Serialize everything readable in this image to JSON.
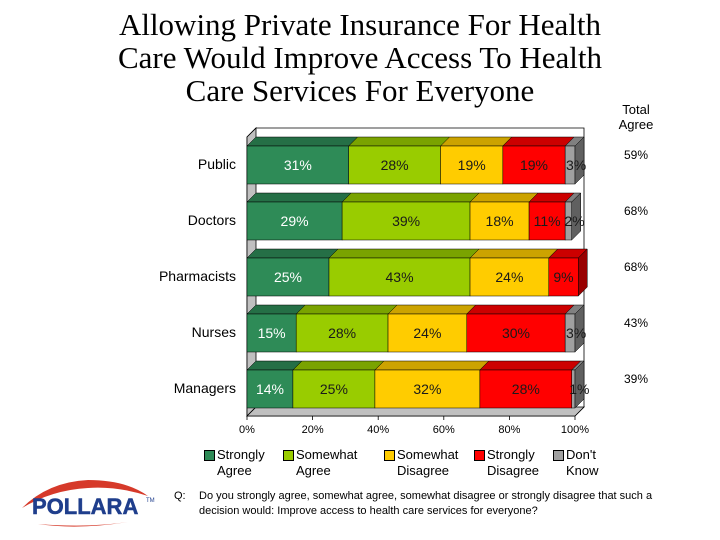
{
  "title_lines": [
    "Allowing Private Insurance For Health",
    "Care Would Improve Access To Health",
    "Care Services For Everyone"
  ],
  "total_agree_label": "Total Agree",
  "chart_data": {
    "type": "bar",
    "orientation": "horizontal",
    "stacked": true,
    "categories": [
      "Public",
      "Doctors",
      "Pharmacists",
      "Nurses",
      "Managers"
    ],
    "series": [
      {
        "name": "Strongly Agree",
        "color": "#2e8b57",
        "values": [
          31,
          29,
          25,
          15,
          14
        ]
      },
      {
        "name": "Somewhat Agree",
        "color": "#99cc00",
        "values": [
          28,
          39,
          43,
          28,
          25
        ]
      },
      {
        "name": "Somewhat Disagree",
        "color": "#ffcc00",
        "values": [
          19,
          18,
          24,
          24,
          32
        ]
      },
      {
        "name": "Strongly Disagree",
        "color": "#ff0000",
        "values": [
          19,
          11,
          9,
          30,
          28
        ]
      },
      {
        "name": "Don't Know",
        "color": "#a0a0a0",
        "values": [
          3,
          2,
          0,
          3,
          1
        ]
      }
    ],
    "bar_labels": [
      [
        "31%",
        "28%",
        "19%",
        "19%",
        "3%"
      ],
      [
        "29%",
        "39%",
        "18%",
        "11%",
        "2%"
      ],
      [
        "25%",
        "43%",
        "24%",
        "9%",
        ""
      ],
      [
        "15%",
        "28%",
        "24%",
        "30%",
        "3%"
      ],
      [
        "14%",
        "25%",
        "32%",
        "28%",
        "1%"
      ]
    ],
    "total_agree": [
      "59%",
      "68%",
      "68%",
      "43%",
      "39%"
    ],
    "xlim": [
      0,
      100
    ],
    "xticks": [
      "0%",
      "20%",
      "40%",
      "60%",
      "80%",
      "100%"
    ],
    "grid": false,
    "legend_position": "bottom"
  },
  "legend": [
    {
      "text": "Strongly\nAgree",
      "color": "#2e8b57"
    },
    {
      "text": "Somewhat\nAgree",
      "color": "#99cc00"
    },
    {
      "text": "Somewhat\nDisagree",
      "color": "#ffcc00"
    },
    {
      "text": "Strongly\nDisagree",
      "color": "#ff0000"
    },
    {
      "text": "Don't\nKnow",
      "color": "#a0a0a0"
    }
  ],
  "logo_text": "POLLARA",
  "logo_tm": "TM",
  "question_prefix": "Q:",
  "question_text": "Do you strongly agree, somewhat agree, somewhat disagree or strongly disagree that such a decision would: Improve access to health care services for everyone?"
}
